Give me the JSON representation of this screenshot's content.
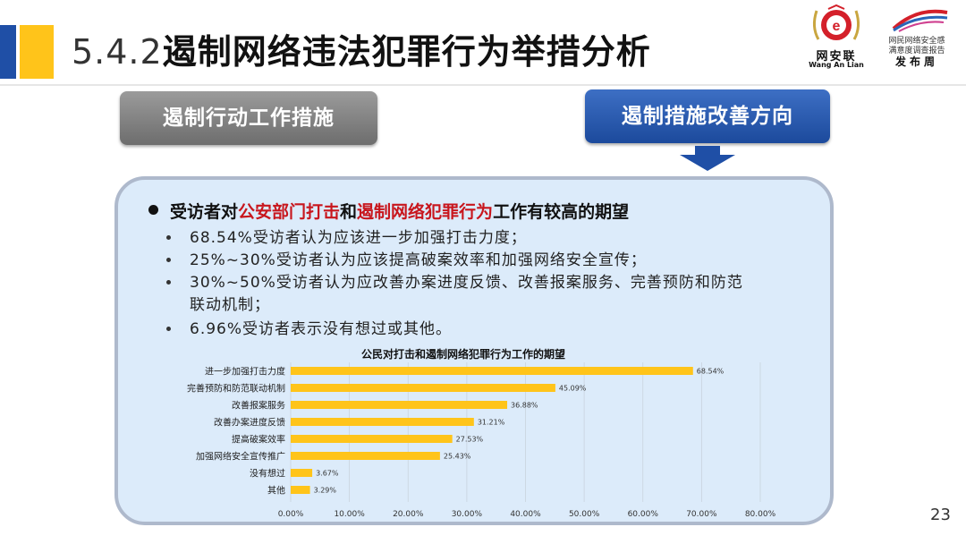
{
  "header": {
    "title_number": "5.4.2",
    "title_text": "遏制网络违法犯罪行为举措分析"
  },
  "logos": {
    "left": {
      "name": "网安联",
      "sub": "Wang An Lian"
    },
    "right": {
      "line1": "网民网络安全感",
      "line2": "满意度调查报告",
      "line3": "发布周"
    }
  },
  "tabs": {
    "left_label": "遏制行动工作措施",
    "right_label": "遏制措施改善方向"
  },
  "content": {
    "lead_prefix": "受访者对",
    "lead_red1": "公安部门打击",
    "lead_mid": "和",
    "lead_red2": "遏制网络犯罪行为",
    "lead_suffix": "工作有较高的期望",
    "items": [
      "68.54%受访者认为应该进一步加强打击力度；",
      "25%~30%受访者认为应该提高破案效率和加强网络安全宣传；",
      "30%~50%受访者认为应改善办案进度反馈、改善报案服务、完善预防和防范",
      "联动机制；",
      "6.96%受访者表示没有想过或其他。"
    ]
  },
  "chart_data": {
    "type": "bar",
    "orientation": "horizontal",
    "title": "公民对打击和遏制网络犯罪行为工作的期望",
    "categories": [
      "进一步加强打击力度",
      "完善预防和防范联动机制",
      "改善报案服务",
      "改善办案进度反馈",
      "提高破案效率",
      "加强网络安全宣传推广",
      "没有想过",
      "其他"
    ],
    "values": [
      68.54,
      45.09,
      36.88,
      31.21,
      27.53,
      25.43,
      3.67,
      3.29
    ],
    "value_labels": [
      "68.54%",
      "45.09%",
      "36.88%",
      "31.21%",
      "27.53%",
      "25.43%",
      "3.67%",
      "3.29%"
    ],
    "xlim": [
      0,
      80
    ],
    "x_ticks": [
      "0.00%",
      "10.00%",
      "20.00%",
      "30.00%",
      "40.00%",
      "50.00%",
      "60.00%",
      "70.00%",
      "80.00%"
    ],
    "bar_color": "#ffc41a",
    "grid": true
  },
  "page_number": "23"
}
